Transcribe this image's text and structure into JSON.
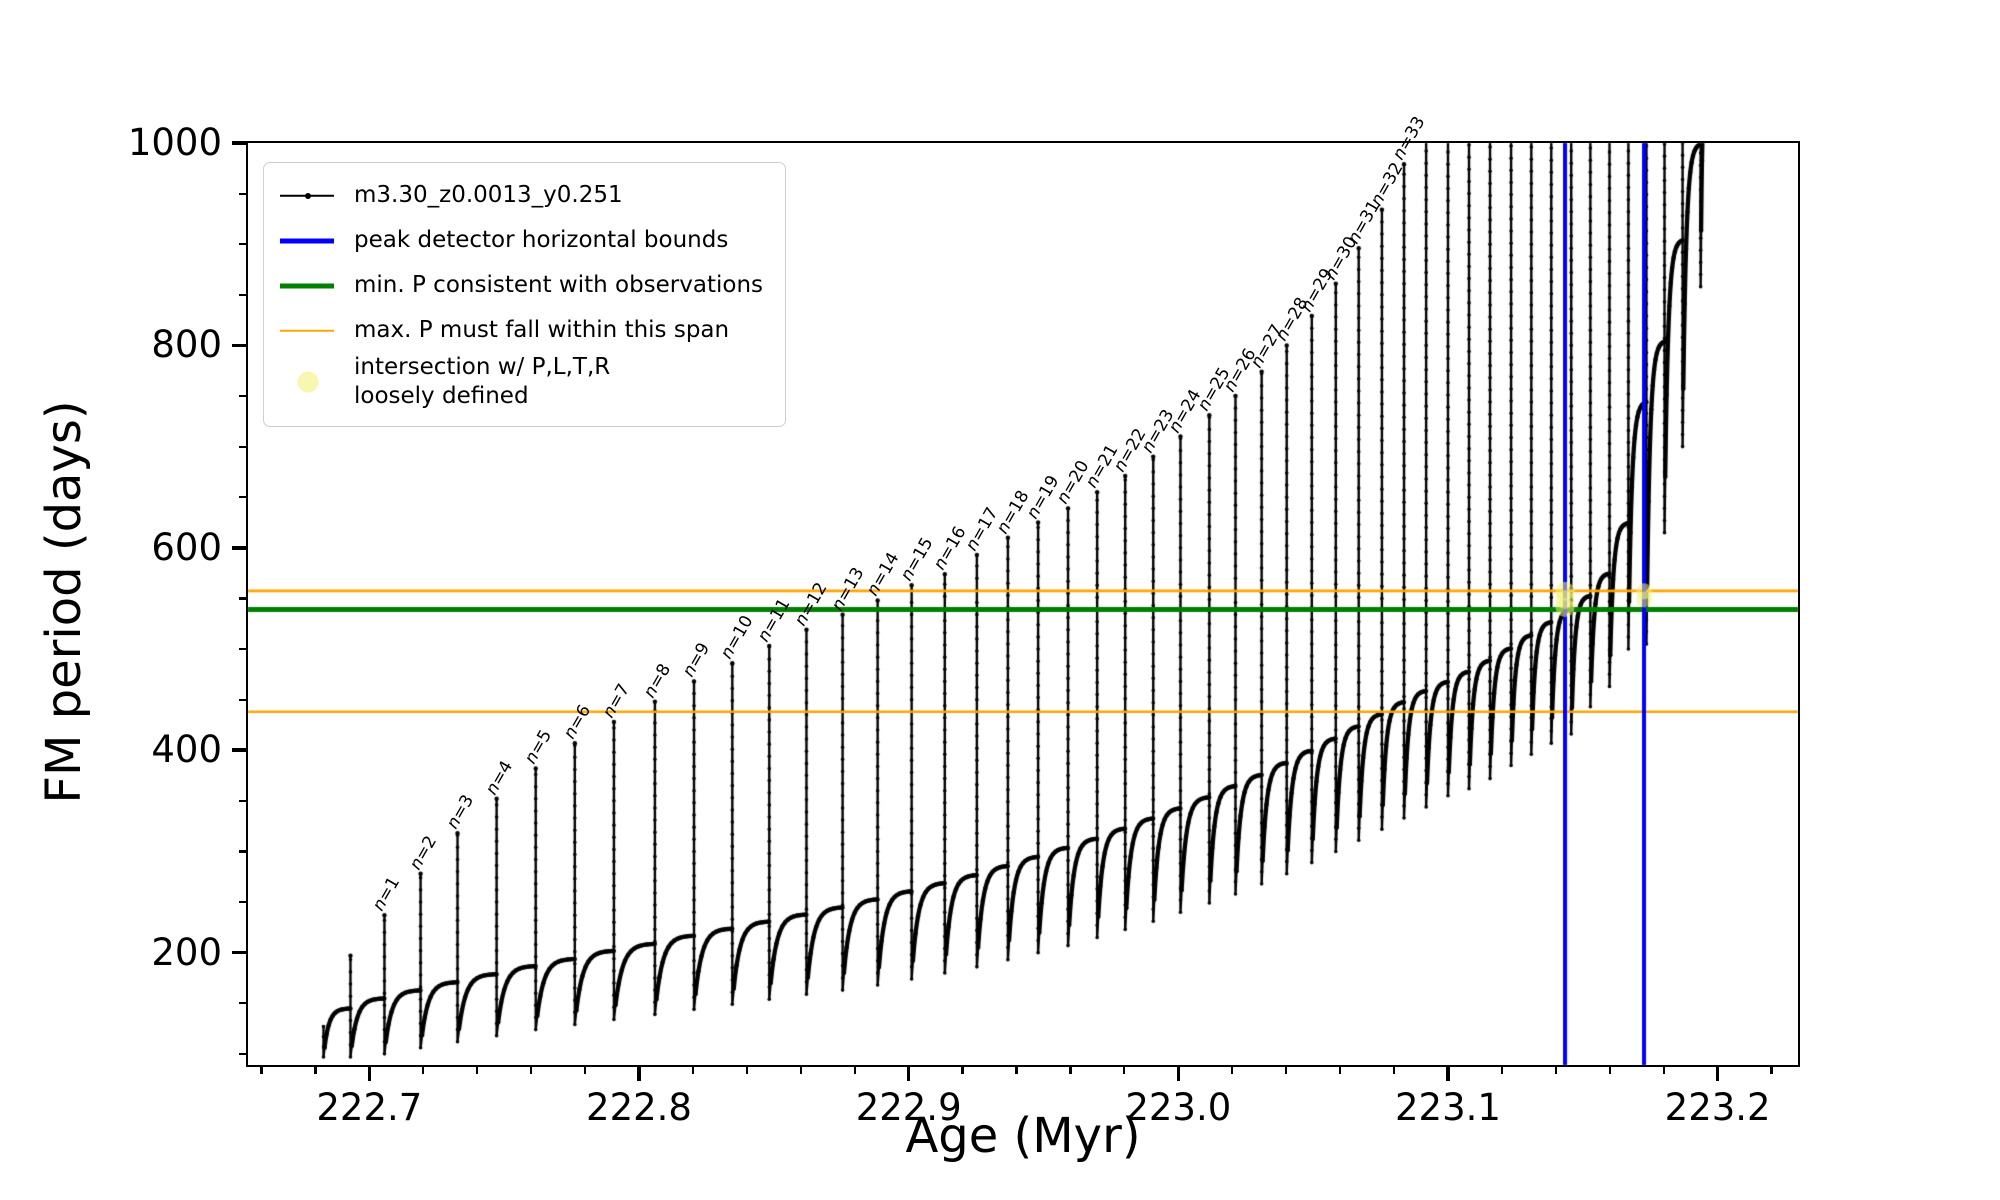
{
  "figure": {
    "background": "#ffffff"
  },
  "colors": {
    "series": "#000000",
    "peak_bounds": "#0000ff",
    "min_p": "#007f00",
    "max_p_span": "#ffa500",
    "intersection": "#f2f27a",
    "intersection_legend": "#f7f7b0",
    "axis": "#000000",
    "legend_border": "#cfcfcf"
  },
  "axis": {
    "xlabel": "Age (Myr)",
    "ylabel": "FM period (days)",
    "xlim": [
      222.655,
      223.2298
    ],
    "ylim": [
      89,
      1000
    ],
    "x_major_ticks": [
      222.7,
      222.8,
      222.9,
      223.0,
      223.1,
      223.2
    ],
    "x_tick_labels": [
      "222.7",
      "222.8",
      "222.9",
      "223.0",
      "223.1",
      "223.2"
    ],
    "x_minor_step": 0.02,
    "y_major_ticks": [
      200,
      400,
      600,
      800,
      1000
    ],
    "y_tick_labels": [
      "200",
      "400",
      "600",
      "800",
      "1000"
    ],
    "y_minor_step": 50
  },
  "legend": {
    "items": [
      {
        "label": "m3.30_z0.0013_y0.251",
        "handle": "line-dot",
        "color": "#000000",
        "lw": 2.5
      },
      {
        "label": "peak detector horizontal bounds",
        "handle": "line",
        "color": "#0000ff",
        "lw": 5
      },
      {
        "label": "min. P consistent with observations",
        "handle": "line",
        "color": "#007f00",
        "lw": 5
      },
      {
        "label": "max. P must fall within this span",
        "handle": "line",
        "color": "#ffa500",
        "lw": 2.5
      },
      {
        "label": "intersection w/ P,L,T,R\nloosely defined",
        "handle": "marker",
        "color": "#f7f7b0"
      }
    ]
  },
  "chart_data": {
    "type": "line",
    "title": "",
    "xlabel": "Age (Myr)",
    "ylabel": "FM period (days)",
    "xlim": [
      222.655,
      223.2298
    ],
    "ylim": [
      89,
      1000
    ],
    "series_name": "m3.30_z0.0013_y0.251",
    "start": {
      "age": 222.683,
      "from": 127,
      "to": 97
    },
    "end": {
      "age": 223.196,
      "value": 1060
    },
    "teeth": [
      {
        "n": null,
        "age": 222.693,
        "base": 145,
        "peak": 197,
        "min": 97
      },
      {
        "n": 1,
        "age": 222.7056,
        "base": 155,
        "peak": 237,
        "min": 100
      },
      {
        "n": 2,
        "age": 222.719,
        "base": 163,
        "peak": 278,
        "min": 106
      },
      {
        "n": 3,
        "age": 222.7327,
        "base": 171,
        "peak": 318,
        "min": 112
      },
      {
        "n": 4,
        "age": 222.7472,
        "base": 179,
        "peak": 352,
        "min": 118
      },
      {
        "n": 5,
        "age": 222.7617,
        "base": 187,
        "peak": 382,
        "min": 124
      },
      {
        "n": 6,
        "age": 222.7762,
        "base": 194,
        "peak": 407,
        "min": 129
      },
      {
        "n": 7,
        "age": 222.7907,
        "base": 202,
        "peak": 428,
        "min": 134
      },
      {
        "n": 8,
        "age": 222.8059,
        "base": 209,
        "peak": 448,
        "min": 139
      },
      {
        "n": 9,
        "age": 222.8204,
        "base": 217,
        "peak": 468,
        "min": 144
      },
      {
        "n": 10,
        "age": 222.8346,
        "base": 224,
        "peak": 486,
        "min": 149
      },
      {
        "n": 11,
        "age": 222.8483,
        "base": 231,
        "peak": 503,
        "min": 154
      },
      {
        "n": 12,
        "age": 222.8621,
        "base": 238,
        "peak": 519,
        "min": 159
      },
      {
        "n": 13,
        "age": 222.8755,
        "base": 245,
        "peak": 534,
        "min": 163
      },
      {
        "n": 14,
        "age": 222.8885,
        "base": 253,
        "peak": 548,
        "min": 168
      },
      {
        "n": 15,
        "age": 222.9011,
        "base": 261,
        "peak": 563,
        "min": 174
      },
      {
        "n": 16,
        "age": 222.9134,
        "base": 269,
        "peak": 574,
        "min": 180
      },
      {
        "n": 17,
        "age": 222.9253,
        "base": 277,
        "peak": 593,
        "min": 186
      },
      {
        "n": 18,
        "age": 222.9368,
        "base": 286,
        "peak": 610,
        "min": 193
      },
      {
        "n": 19,
        "age": 222.948,
        "base": 295,
        "peak": 625,
        "min": 200
      },
      {
        "n": 20,
        "age": 222.9591,
        "base": 304,
        "peak": 639,
        "min": 207
      },
      {
        "n": 21,
        "age": 222.9699,
        "base": 313,
        "peak": 655,
        "min": 215
      },
      {
        "n": 22,
        "age": 222.9803,
        "base": 323,
        "peak": 671,
        "min": 223
      },
      {
        "n": 23,
        "age": 222.9907,
        "base": 333,
        "peak": 690,
        "min": 231
      },
      {
        "n": 24,
        "age": 223.0008,
        "base": 343,
        "peak": 710,
        "min": 240
      },
      {
        "n": 25,
        "age": 223.0115,
        "base": 354,
        "peak": 731,
        "min": 249
      },
      {
        "n": 26,
        "age": 223.0212,
        "base": 365,
        "peak": 750,
        "min": 258
      },
      {
        "n": 27,
        "age": 223.0309,
        "base": 376,
        "peak": 774,
        "min": 268
      },
      {
        "n": 28,
        "age": 223.0402,
        "base": 388,
        "peak": 800,
        "min": 278
      },
      {
        "n": 29,
        "age": 223.0495,
        "base": 400,
        "peak": 829,
        "min": 289
      },
      {
        "n": 30,
        "age": 223.0584,
        "base": 412,
        "peak": 861,
        "min": 300
      },
      {
        "n": 31,
        "age": 223.0669,
        "base": 424,
        "peak": 896,
        "min": 311
      },
      {
        "n": 32,
        "age": 223.0755,
        "base": 436,
        "peak": 934,
        "min": 322
      },
      {
        "n": 33,
        "age": 223.0837,
        "base": 448,
        "peak": 979,
        "min": 333
      },
      {
        "n": null,
        "age": 223.0919,
        "base": 459,
        "peak": 1002,
        "min": 344
      },
      {
        "n": null,
        "age": 223.1,
        "base": 468,
        "peak": 1060,
        "min": 355
      },
      {
        "n": null,
        "age": 223.1078,
        "base": 478,
        "peak": 1060,
        "min": 362
      },
      {
        "n": null,
        "age": 223.1156,
        "base": 489,
        "peak": 1060,
        "min": 372
      },
      {
        "n": null,
        "age": 223.1234,
        "base": 501,
        "peak": 1060,
        "min": 385
      },
      {
        "n": null,
        "age": 223.1309,
        "base": 514,
        "peak": 1060,
        "min": 396
      },
      {
        "n": null,
        "age": 223.1383,
        "base": 527,
        "peak": 1060,
        "min": 407
      },
      {
        "n": null,
        "age": 223.1457,
        "base": 540,
        "peak": 1060,
        "min": 416
      },
      {
        "n": null,
        "age": 223.1528,
        "base": 553,
        "peak": 1060,
        "min": 443
      },
      {
        "n": null,
        "age": 223.1599,
        "base": 575,
        "peak": 1060,
        "min": 463
      },
      {
        "n": null,
        "age": 223.1669,
        "base": 625,
        "peak": 1060,
        "min": 500
      },
      {
        "n": null,
        "age": 223.1736,
        "base": 745,
        "peak": 1060,
        "min": 505
      },
      {
        "n": null,
        "age": 223.1803,
        "base": 805,
        "peak": 1060,
        "min": 615
      },
      {
        "n": null,
        "age": 223.187,
        "base": 905,
        "peak": 1060,
        "min": 700
      },
      {
        "n": null,
        "age": 223.1937,
        "base": 1000,
        "peak": 1060,
        "min": 858
      }
    ],
    "hlines": [
      {
        "name": "min. P consistent with observations",
        "period": 539,
        "color": "#007f00",
        "width": 5
      },
      {
        "name": "max. P span upper",
        "period": 557.5,
        "color": "#ffa500",
        "width": 2.6
      },
      {
        "name": "max. P span lower",
        "period": 438,
        "color": "#ffa500",
        "width": 2.6
      }
    ],
    "vlines": [
      {
        "name": "peak detector left bound",
        "age": 223.1434,
        "color": "#0000ff",
        "width": 4
      },
      {
        "name": "peak detector right bound",
        "age": 223.1727,
        "color": "#0000ff",
        "width": 4
      }
    ],
    "intersections": [
      {
        "age": 223.1434,
        "periods": [
          541,
          549,
          557
        ],
        "r": 9.5
      },
      {
        "age": 223.1727,
        "periods": [
          549,
          557
        ],
        "r": 8
      }
    ],
    "legend_position": "upper left",
    "grid": false
  }
}
